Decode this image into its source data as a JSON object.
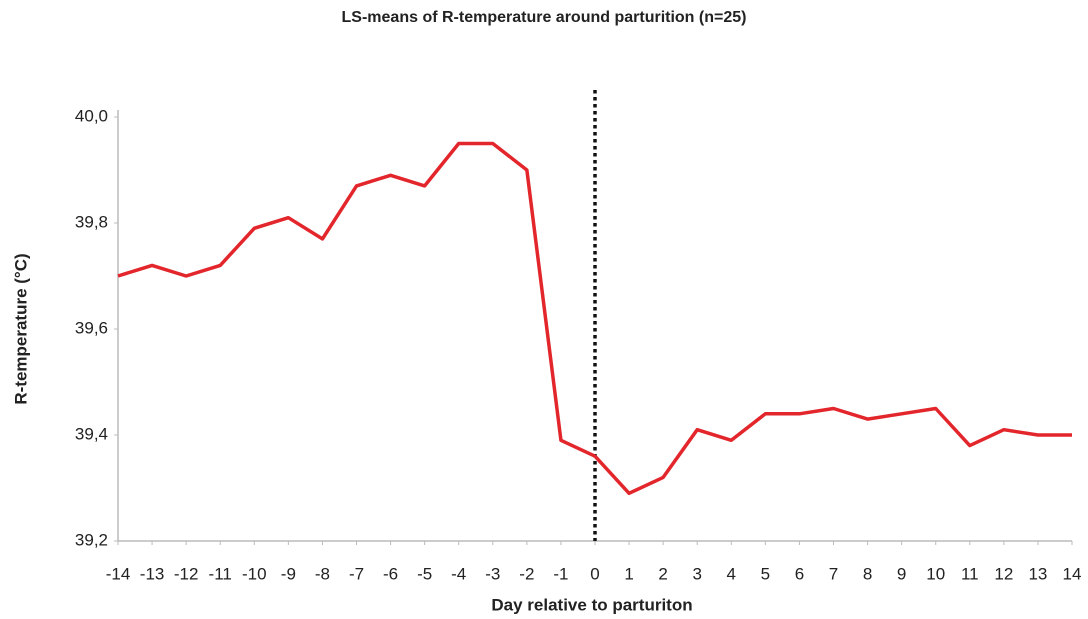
{
  "chart_data": {
    "type": "line",
    "title": "LS-means of R-temperature around parturition (n=25)",
    "x_label": "Day relative to parturiton",
    "y_label": "R-temperature (°C)",
    "x": [
      -14,
      -13,
      -12,
      -11,
      -10,
      -9,
      -8,
      -7,
      -6,
      -5,
      -4,
      -3,
      -2,
      -1,
      0,
      1,
      2,
      3,
      4,
      5,
      6,
      7,
      8,
      9,
      10,
      11,
      12,
      13,
      14
    ],
    "series": [
      {
        "name": "R-temperature",
        "color": "#e3262b",
        "values": [
          39.7,
          39.72,
          39.7,
          39.72,
          39.79,
          39.81,
          39.77,
          39.87,
          39.89,
          39.87,
          39.95,
          39.95,
          39.9,
          39.39,
          39.36,
          39.29,
          39.32,
          39.41,
          39.39,
          39.44,
          39.44,
          39.45,
          39.43,
          39.44,
          39.45,
          39.38,
          39.41,
          39.4,
          39.4
        ]
      }
    ],
    "xlim": [
      -14,
      14
    ],
    "xticks": [
      -14,
      -13,
      -12,
      -11,
      -10,
      -9,
      -8,
      -7,
      -6,
      -5,
      -4,
      -3,
      -2,
      -1,
      0,
      1,
      2,
      3,
      4,
      5,
      6,
      7,
      8,
      9,
      10,
      11,
      12,
      13,
      14
    ],
    "ylim": [
      39.2,
      40.0
    ],
    "yticks": [
      {
        "value": 39.2,
        "label": "39,2"
      },
      {
        "value": 39.4,
        "label": "39,4"
      },
      {
        "value": 39.6,
        "label": "39,6"
      },
      {
        "value": 39.8,
        "label": "39,8"
      },
      {
        "value": 40.0,
        "label": "40,0"
      }
    ],
    "reference_line_x": 0,
    "grid": false
  }
}
